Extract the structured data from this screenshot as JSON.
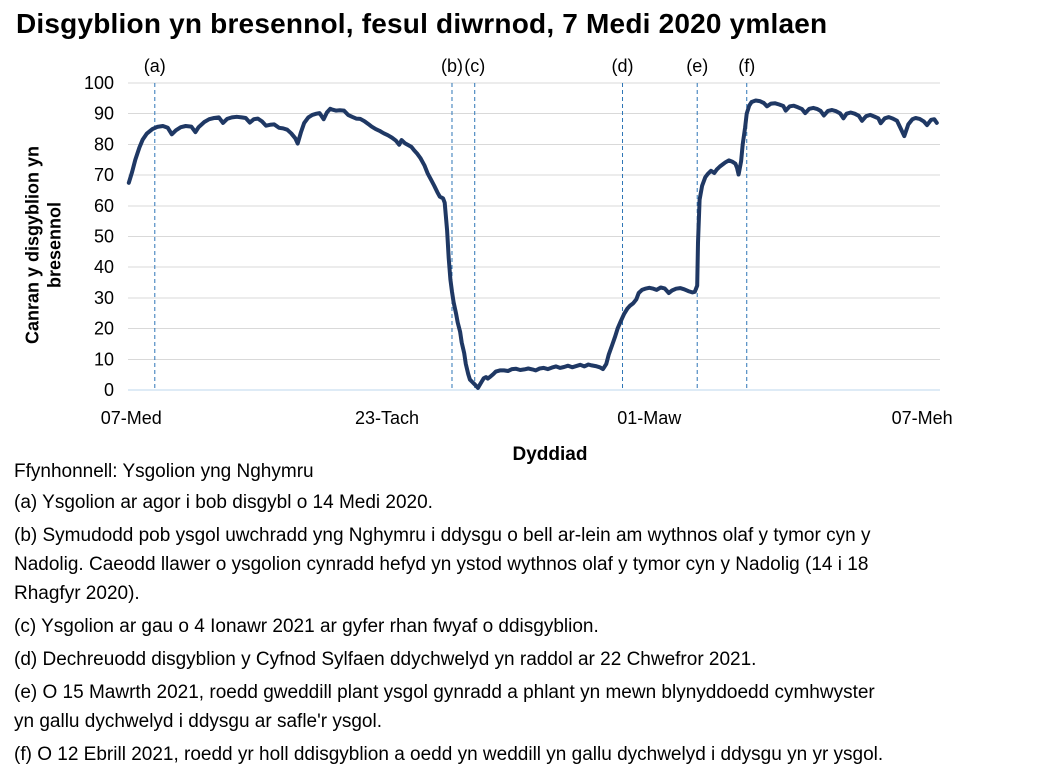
{
  "chart_data": {
    "type": "line",
    "title": "Disgyblion yn bresennol, fesul diwrnod, 7 Medi 2020 ymlaen",
    "xlabel": "Dyddiad",
    "ylabel": "Canran y disgyblion yn bresennol",
    "source": "Ffynhonnell: Ysgolion yng Nghymru",
    "ylim": [
      0,
      100
    ],
    "ytick_step": 10,
    "grid": true,
    "legend": "none",
    "colors": {
      "grid": "#d9d9d9",
      "baseline": "#bdd7ee",
      "event": "#2e75b6",
      "text": "#000000"
    },
    "xticks": [
      {
        "label": "07-Med",
        "pos": 0.4
      },
      {
        "label": "23-Tach",
        "pos": 31.9
      },
      {
        "label": "01-Maw",
        "pos": 64.2
      },
      {
        "label": "07-Meh",
        "pos": 97.8
      }
    ],
    "event_lines": [
      {
        "label": "(a)",
        "pos": 3.3
      },
      {
        "label": "(b)",
        "pos": 39.9
      },
      {
        "label": "(c)",
        "pos": 42.7
      },
      {
        "label": "(d)",
        "pos": 60.9
      },
      {
        "label": "(e)",
        "pos": 70.1
      },
      {
        "label": "(f)",
        "pos": 76.2
      }
    ],
    "series": [
      {
        "name": "Canran y disgyblion yn bresennol",
        "color": "#1f3864",
        "points": [
          [
            0.1,
            67.5
          ],
          [
            0.5,
            71
          ],
          [
            0.9,
            75
          ],
          [
            1.4,
            79
          ],
          [
            1.8,
            81.5
          ],
          [
            2.3,
            83.5
          ],
          [
            3,
            85
          ],
          [
            3.6,
            85.7
          ],
          [
            4.3,
            86
          ],
          [
            4.9,
            85.4
          ],
          [
            5.4,
            83.3
          ],
          [
            5.9,
            84.6
          ],
          [
            6.5,
            85.6
          ],
          [
            7.1,
            86
          ],
          [
            7.8,
            85.8
          ],
          [
            8.3,
            84
          ],
          [
            8.7,
            85.6
          ],
          [
            9.4,
            87.3
          ],
          [
            10,
            88.2
          ],
          [
            10.6,
            88.6
          ],
          [
            11.2,
            88.8
          ],
          [
            11.7,
            87
          ],
          [
            12.2,
            88.3
          ],
          [
            12.8,
            88.8
          ],
          [
            13.4,
            89
          ],
          [
            14,
            88.8
          ],
          [
            14.5,
            88.6
          ],
          [
            15,
            87.1
          ],
          [
            15.5,
            88.2
          ],
          [
            16,
            88.4
          ],
          [
            16.5,
            87.5
          ],
          [
            17,
            86.1
          ],
          [
            17.5,
            86.4
          ],
          [
            18,
            86.5
          ],
          [
            18.6,
            85.4
          ],
          [
            19.1,
            85.2
          ],
          [
            19.6,
            84.8
          ],
          [
            20.1,
            83.6
          ],
          [
            20.6,
            82
          ],
          [
            20.9,
            80.3
          ],
          [
            21.3,
            84
          ],
          [
            21.7,
            87
          ],
          [
            22.2,
            88.8
          ],
          [
            22.7,
            89.6
          ],
          [
            23.2,
            90
          ],
          [
            23.6,
            90.2
          ],
          [
            24.1,
            88.2
          ],
          [
            24.5,
            90.4
          ],
          [
            24.9,
            91.6
          ],
          [
            25.2,
            91.3
          ],
          [
            25.6,
            91
          ],
          [
            26.1,
            91.1
          ],
          [
            26.6,
            91
          ],
          [
            27.1,
            89.6
          ],
          [
            27.6,
            89
          ],
          [
            28.1,
            88.4
          ],
          [
            28.6,
            88.3
          ],
          [
            29.1,
            87.6
          ],
          [
            29.6,
            86.6
          ],
          [
            30,
            85.8
          ],
          [
            30.5,
            85
          ],
          [
            31,
            84.4
          ],
          [
            31.5,
            83.6
          ],
          [
            32,
            83
          ],
          [
            32.5,
            82.2
          ],
          [
            33,
            81.2
          ],
          [
            33.4,
            79.9
          ],
          [
            33.7,
            81.4
          ],
          [
            34.1,
            80.4
          ],
          [
            34.5,
            79.8
          ],
          [
            34.9,
            79.2
          ],
          [
            35.2,
            78.2
          ],
          [
            35.6,
            77
          ],
          [
            36,
            75.6
          ],
          [
            36.5,
            73.2
          ],
          [
            36.9,
            70.6
          ],
          [
            37.3,
            68.6
          ],
          [
            37.7,
            66.6
          ],
          [
            38.1,
            64.4
          ],
          [
            38.4,
            63
          ],
          [
            38.8,
            62.4
          ],
          [
            39,
            61
          ],
          [
            39.3,
            52
          ],
          [
            39.5,
            43
          ],
          [
            39.7,
            36
          ],
          [
            39.9,
            32
          ],
          [
            40.1,
            28.6
          ],
          [
            40.4,
            25
          ],
          [
            40.6,
            22
          ],
          [
            40.9,
            19
          ],
          [
            41.1,
            15.5
          ],
          [
            41.4,
            12
          ],
          [
            41.6,
            8.5
          ],
          [
            41.9,
            5.2
          ],
          [
            42.1,
            3.4
          ],
          [
            42.4,
            2.6
          ],
          [
            42.6,
            2.1
          ],
          [
            42.9,
            1.3
          ],
          [
            43.1,
            0.7
          ],
          [
            43.3,
            1.6
          ],
          [
            43.6,
            2.9
          ],
          [
            43.8,
            3.8
          ],
          [
            44.1,
            4.2
          ],
          [
            44.3,
            3.7
          ],
          [
            44.6,
            4.3
          ],
          [
            45,
            5.2
          ],
          [
            45.3,
            6
          ],
          [
            45.8,
            6.4
          ],
          [
            46.3,
            6.4
          ],
          [
            46.8,
            6.2
          ],
          [
            47.3,
            6.8
          ],
          [
            47.8,
            6.9
          ],
          [
            48.3,
            6.5
          ],
          [
            48.8,
            6.7
          ],
          [
            49.3,
            7
          ],
          [
            49.8,
            6.7
          ],
          [
            50.2,
            6.4
          ],
          [
            50.7,
            7
          ],
          [
            51.2,
            7.2
          ],
          [
            51.7,
            6.8
          ],
          [
            52.2,
            7.3
          ],
          [
            52.7,
            7.7
          ],
          [
            53.2,
            7.2
          ],
          [
            53.7,
            7.5
          ],
          [
            54.2,
            7.9
          ],
          [
            54.7,
            7.4
          ],
          [
            55.2,
            7.8
          ],
          [
            55.7,
            8.2
          ],
          [
            56.2,
            7.7
          ],
          [
            56.7,
            8.3
          ],
          [
            57.1,
            8
          ],
          [
            57.6,
            7.8
          ],
          [
            58.1,
            7.4
          ],
          [
            58.5,
            6.8
          ],
          [
            58.9,
            8.5
          ],
          [
            59.2,
            11.5
          ],
          [
            59.6,
            14.5
          ],
          [
            60,
            17.5
          ],
          [
            60.3,
            20
          ],
          [
            60.7,
            22.5
          ],
          [
            61.1,
            24.8
          ],
          [
            61.5,
            26.5
          ],
          [
            61.8,
            27.4
          ],
          [
            62.2,
            28.2
          ],
          [
            62.6,
            29.5
          ],
          [
            62.9,
            31.6
          ],
          [
            63.3,
            32.6
          ],
          [
            63.7,
            33
          ],
          [
            64.2,
            33.3
          ],
          [
            64.7,
            33
          ],
          [
            65.1,
            32.6
          ],
          [
            65.6,
            33.4
          ],
          [
            66.1,
            33.1
          ],
          [
            66.6,
            31.6
          ],
          [
            67,
            32.4
          ],
          [
            67.5,
            33
          ],
          [
            68,
            33.2
          ],
          [
            68.5,
            32.8
          ],
          [
            69,
            32.2
          ],
          [
            69.5,
            31.8
          ],
          [
            69.8,
            32
          ],
          [
            70.1,
            34
          ],
          [
            70.2,
            48
          ],
          [
            70.4,
            62
          ],
          [
            70.7,
            66.5
          ],
          [
            71.1,
            69.3
          ],
          [
            71.4,
            70.4
          ],
          [
            71.8,
            71.4
          ],
          [
            72.2,
            70.7
          ],
          [
            72.5,
            71.8
          ],
          [
            72.9,
            72.8
          ],
          [
            73.3,
            73.6
          ],
          [
            73.6,
            74.2
          ],
          [
            74,
            74.8
          ],
          [
            74.4,
            74.4
          ],
          [
            74.8,
            73.7
          ],
          [
            75,
            72.4
          ],
          [
            75.2,
            70.2
          ],
          [
            75.5,
            74.5
          ],
          [
            75.7,
            80
          ],
          [
            76,
            85.5
          ],
          [
            76.2,
            90
          ],
          [
            76.5,
            92.6
          ],
          [
            76.8,
            93.8
          ],
          [
            77.3,
            94.3
          ],
          [
            77.8,
            94.1
          ],
          [
            78.3,
            93.5
          ],
          [
            78.7,
            92.4
          ],
          [
            79.2,
            93.3
          ],
          [
            79.7,
            93.4
          ],
          [
            80.2,
            93
          ],
          [
            80.7,
            92.5
          ],
          [
            81,
            91
          ],
          [
            81.5,
            92.4
          ],
          [
            82,
            92.6
          ],
          [
            82.5,
            92.1
          ],
          [
            83,
            91.5
          ],
          [
            83.4,
            90.2
          ],
          [
            83.9,
            91.6
          ],
          [
            84.4,
            91.9
          ],
          [
            84.9,
            91.5
          ],
          [
            85.3,
            90.9
          ],
          [
            85.7,
            89.4
          ],
          [
            86.2,
            90.9
          ],
          [
            86.7,
            91.2
          ],
          [
            87.2,
            90.8
          ],
          [
            87.7,
            90.1
          ],
          [
            88.1,
            88.5
          ],
          [
            88.5,
            90
          ],
          [
            89,
            90.4
          ],
          [
            89.5,
            90
          ],
          [
            90,
            89.3
          ],
          [
            90.4,
            87.7
          ],
          [
            90.9,
            89.2
          ],
          [
            91.4,
            89.6
          ],
          [
            91.9,
            89.1
          ],
          [
            92.4,
            88.5
          ],
          [
            92.7,
            86.9
          ],
          [
            93.2,
            88.5
          ],
          [
            93.7,
            88.9
          ],
          [
            94.2,
            88.4
          ],
          [
            94.7,
            87.7
          ],
          [
            95.2,
            85
          ],
          [
            95.6,
            82.7
          ],
          [
            96.1,
            86.5
          ],
          [
            96.6,
            88.2
          ],
          [
            97,
            88.6
          ],
          [
            97.5,
            88.3
          ],
          [
            98,
            87.5
          ],
          [
            98.4,
            86.3
          ],
          [
            98.9,
            88
          ],
          [
            99.3,
            88.2
          ],
          [
            99.6,
            87
          ]
        ]
      }
    ]
  },
  "footnotes": {
    "a": "(a) Ysgolion ar agor i bob disgybl o 14 Medi 2020.",
    "b": "(b) Symudodd pob ysgol uwchradd yng Nghymru i ddysgu o bell ar-lein am wythnos olaf y tymor cyn y Nadolig. Caeodd llawer o ysgolion cynradd hefyd yn ystod wythnos olaf y tymor cyn y Nadolig (14 i 18 Rhagfyr 2020).",
    "c": "(c) Ysgolion ar gau o 4 Ionawr 2021 ar gyfer rhan fwyaf o ddisgyblion.",
    "d": "(d) Dechreuodd disgyblion y Cyfnod Sylfaen ddychwelyd yn raddol ar 22 Chwefror 2021.",
    "e": "(e) O 15 Mawrth 2021, roedd gweddill plant ysgol gynradd a phlant yn mewn blynyddoedd cymhwyster yn gallu dychwelyd i ddysgu ar safle'r ysgol.",
    "f": "(f) O 12 Ebrill 2021, roedd yr holl ddisgyblion a oedd yn weddill yn gallu dychwelyd i ddysgu yn yr ysgol."
  }
}
